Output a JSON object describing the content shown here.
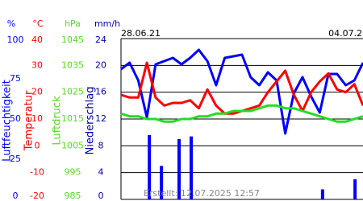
{
  "chart_data": {
    "type": "line",
    "xlim": [
      0,
      7
    ],
    "xticks": [
      {
        "value": 0,
        "label": "28.06.21"
      },
      {
        "value": 6,
        "label": "04.07.21"
      }
    ],
    "grid": true,
    "x": [
      0,
      0.25,
      0.5,
      0.75,
      1,
      1.25,
      1.5,
      1.75,
      2,
      2.25,
      2.5,
      2.75,
      3,
      3.25,
      3.5,
      3.75,
      4,
      4.25,
      4.5,
      4.75,
      5,
      5.25,
      5.5,
      5.75,
      6,
      6.25,
      6.5,
      6.75,
      7
    ],
    "series": [
      {
        "name": "Luftfeuchtigkeit",
        "unit": "%",
        "color": "#0000ff",
        "ylim": [
          0,
          100
        ],
        "yticks": [
          0,
          25,
          50,
          75,
          100
        ],
        "values": [
          81,
          85,
          74,
          51,
          84,
          86,
          88,
          84,
          88,
          93,
          86,
          71,
          88,
          89,
          90,
          76,
          71,
          79,
          74,
          41,
          66,
          76,
          64,
          54,
          78,
          78,
          71,
          74,
          85
        ]
      },
      {
        "name": "Temperatur",
        "unit": "°C",
        "color": "#ff0000",
        "ylim": [
          -20,
          40
        ],
        "yticks": [
          -20,
          -10,
          0,
          10,
          20,
          30,
          40
        ],
        "values": [
          19,
          18,
          18,
          31,
          18,
          15,
          16,
          16,
          17,
          14,
          21,
          15,
          12,
          12,
          13,
          14,
          15,
          20,
          24,
          28,
          19,
          13,
          20,
          24,
          27,
          21,
          20,
          23,
          15
        ]
      },
      {
        "name": "Luftdruck",
        "unit": "hPa",
        "color": "#22dd22",
        "ylim": [
          985,
          1045
        ],
        "yticks": [
          985,
          995,
          1005,
          1015,
          1025,
          1035,
          1045
        ],
        "values": [
          1017,
          1016,
          1016,
          1015,
          1015,
          1014,
          1014,
          1015,
          1015,
          1016,
          1016,
          1017,
          1017,
          1018,
          1018,
          1018,
          1019,
          1020,
          1020,
          1019,
          1019,
          1018,
          1017,
          1016,
          1015,
          1014,
          1014,
          1015,
          1016
        ]
      },
      {
        "name": "Niederschlag",
        "unit": "mm/h",
        "type": "bar",
        "color": "#0000ff",
        "ylim": [
          0,
          24
        ],
        "yticks": [
          0,
          4,
          8,
          12,
          16,
          20,
          24
        ],
        "x": [
          0.82,
          1.17,
          1.68,
          2.03,
          5.83,
          6.77
        ],
        "values": [
          9.6,
          5,
          9,
          9.4,
          1.5,
          3
        ]
      }
    ]
  },
  "footer": "Erstellt: 12.07.2025 12:57"
}
